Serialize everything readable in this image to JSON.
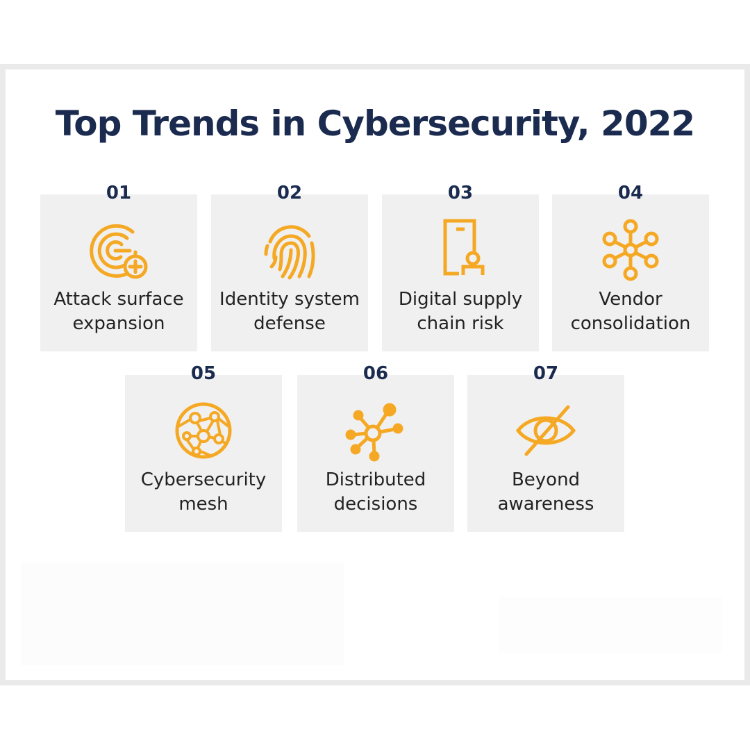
{
  "title": "Top Trends in Cybersecurity, 2022",
  "accent_color": "#f5a823",
  "title_color": "#1b2b4f",
  "trends": [
    {
      "number": "01",
      "line1": "Attack surface",
      "line2": "expansion",
      "icon": "radar-plus-icon"
    },
    {
      "number": "02",
      "line1": "Identity system",
      "line2": "defense",
      "icon": "fingerprint-icon"
    },
    {
      "number": "03",
      "line1": "Digital supply",
      "line2": "chain risk",
      "icon": "door-person-icon"
    },
    {
      "number": "04",
      "line1": "Vendor",
      "line2": "consolidation",
      "icon": "hub-network-icon"
    },
    {
      "number": "05",
      "line1": "Cybersecurity",
      "line2": "mesh",
      "icon": "mesh-globe-icon"
    },
    {
      "number": "06",
      "line1": "Distributed",
      "line2": "decisions",
      "icon": "distributed-nodes-icon"
    },
    {
      "number": "07",
      "line1": "Beyond",
      "line2": "awareness",
      "icon": "eye-slash-icon"
    }
  ]
}
